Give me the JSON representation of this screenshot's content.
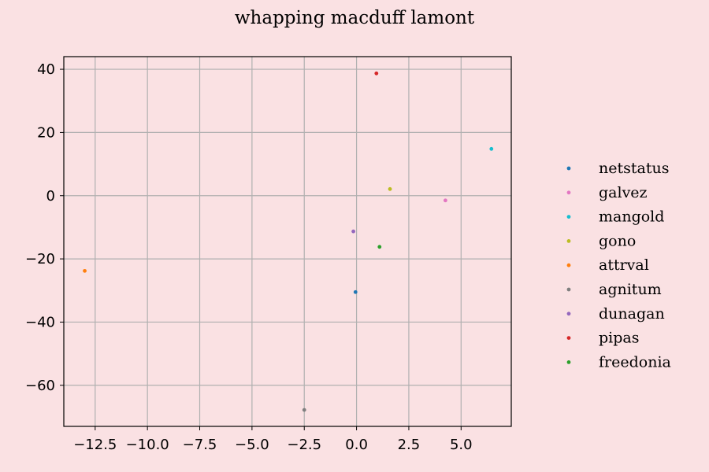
{
  "chart_data": {
    "type": "scatter",
    "title": "whapping macduff lamont",
    "xlabel": "",
    "ylabel": "",
    "xlim": [
      -14,
      7.4
    ],
    "ylim": [
      -73,
      44
    ],
    "xticks": [
      -12.5,
      -10.0,
      -7.5,
      -5.0,
      -2.5,
      0.0,
      2.5,
      5.0
    ],
    "xtick_labels": [
      "−12.5",
      "−10.0",
      "−7.5",
      "−5.0",
      "−2.5",
      "0.0",
      "2.5",
      "5.0"
    ],
    "yticks": [
      40,
      20,
      0,
      -20,
      -40,
      -60
    ],
    "ytick_labels": [
      "40",
      "20",
      "0",
      "−20",
      "−40",
      "−60"
    ],
    "grid": true,
    "legend_position": "right, outside plot",
    "series": [
      {
        "name": "netstatus",
        "color": "#1f77b4",
        "x": [
          -0.05
        ],
        "y": [
          -30.5
        ]
      },
      {
        "name": "galvez",
        "color": "#e377c2",
        "x": [
          4.25
        ],
        "y": [
          -1.5
        ]
      },
      {
        "name": "mangold",
        "color": "#17becf",
        "x": [
          6.45
        ],
        "y": [
          14.8
        ]
      },
      {
        "name": "gono",
        "color": "#bcbd22",
        "x": [
          1.6
        ],
        "y": [
          2.1
        ]
      },
      {
        "name": "attrval",
        "color": "#ff7f0e",
        "x": [
          -13.0
        ],
        "y": [
          -23.8
        ]
      },
      {
        "name": "agnitum",
        "color": "#7f7f7f",
        "x": [
          -2.5
        ],
        "y": [
          -67.8
        ]
      },
      {
        "name": "dunagan",
        "color": "#9467bd",
        "x": [
          -0.15
        ],
        "y": [
          -11.3
        ]
      },
      {
        "name": "pipas",
        "color": "#d62728",
        "x": [
          0.95
        ],
        "y": [
          38.7
        ]
      },
      {
        "name": "freedonia",
        "color": "#2ca02c",
        "x": [
          1.1
        ],
        "y": [
          -16.2
        ]
      }
    ]
  }
}
